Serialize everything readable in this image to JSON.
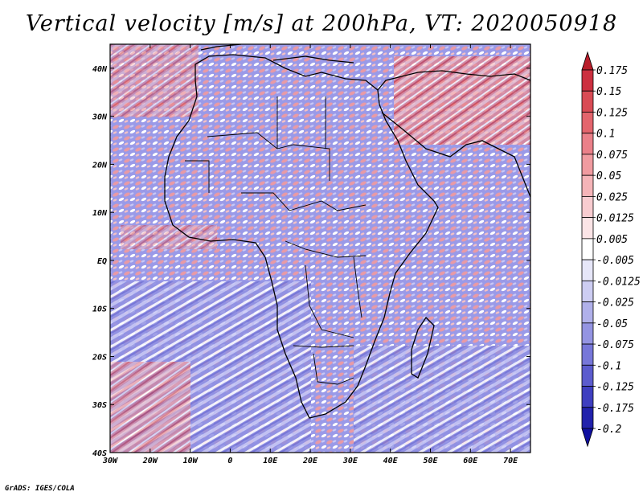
{
  "title": "Vertical velocity [m/s] at 200hPa, VT: 2020050918",
  "credit": "GrADS: IGES/COLA",
  "map": {
    "lon_labels": [
      "30W",
      "20W",
      "10W",
      "0",
      "10E",
      "20E",
      "30E",
      "40E",
      "50E",
      "60E",
      "70E"
    ],
    "lat_labels": [
      "40N",
      "30N",
      "20N",
      "10N",
      "EQ",
      "10S",
      "20S",
      "30S",
      "40S"
    ],
    "lon_range": [
      -30,
      75
    ],
    "lat_range": [
      -40,
      45
    ],
    "field": "vertical velocity",
    "level": "200hPa"
  },
  "colorbar": {
    "labels": [
      "0.175",
      "0.15",
      "0.125",
      "0.1",
      "0.075",
      "0.05",
      "0.025",
      "0.0125",
      "0.005",
      "-0.005",
      "-0.0125",
      "-0.025",
      "-0.05",
      "-0.075",
      "-0.1",
      "-0.125",
      "-0.175",
      "-0.2"
    ],
    "colors": [
      "#b81d2a",
      "#cc3040",
      "#d94b55",
      "#e3656d",
      "#ea8089",
      "#f09ba0",
      "#f5b4b8",
      "#f8ccd0",
      "#fbe4e6",
      "#ffffff",
      "#e6e6f8",
      "#cdcdf2",
      "#b0b0ea",
      "#9494e2",
      "#7777d9",
      "#5c5cce",
      "#3f3fc0",
      "#2222ac",
      "#1010a0"
    ]
  }
}
